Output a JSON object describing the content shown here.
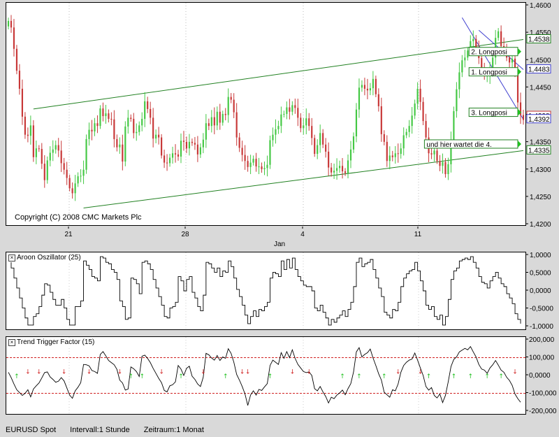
{
  "colors": {
    "up": "#44c844",
    "down": "#c83838",
    "channel": "#208020",
    "down_channel": "#4040d0",
    "ttf_level": "#d02020",
    "signal_up": "#20c020",
    "signal_down": "#d02020"
  },
  "copyright": "Copyright (C) 2008 CMC Markets Plc",
  "status": {
    "symbol": "EURUSD Spot",
    "interval": "Intervall:1 Stunde",
    "period": "Zeitraum:1 Monat"
  },
  "chart_data": [
    {
      "type": "candlestick",
      "id": "price",
      "x_tick_labels": [
        "21",
        "28",
        "4",
        "11"
      ],
      "x_sub_label": "Jan",
      "y_ticks": [
        "1,4600",
        "1,4550",
        "1,4500",
        "1,4450",
        "1,4400",
        "1,4350",
        "1,4300",
        "1,4250",
        "1,4200"
      ],
      "ylim": [
        1.42,
        1.46
      ],
      "price_tags": [
        {
          "label": "1,4538",
          "value": 1.4538,
          "kind": "up"
        },
        {
          "label": "1,4483",
          "value": 1.4483,
          "kind": "blue"
        },
        {
          "label": "1,4398",
          "value": 1.4398,
          "kind": "down"
        },
        {
          "label": "1,4392",
          "value": 1.4392,
          "kind": "blue"
        },
        {
          "label": "1,4335",
          "value": 1.4335,
          "kind": "up"
        }
      ],
      "annotations": [
        {
          "text": "2. Longposi",
          "value": 1.4516
        },
        {
          "text": "1. Longposi",
          "value": 1.4479
        },
        {
          "text": "3. Longposi",
          "value": 1.4405
        },
        {
          "text": "und hier wartet die 4.",
          "value": 1.4347
        }
      ],
      "closes": [
        1.4572,
        1.456,
        1.4521,
        1.4481,
        1.4448,
        1.4397,
        1.4364,
        1.4362,
        1.4381,
        1.4323,
        1.4339,
        1.4338,
        1.4311,
        1.4281,
        1.4317,
        1.4331,
        1.4337,
        1.4345,
        1.4335,
        1.4312,
        1.43,
        1.4285,
        1.4266,
        1.4257,
        1.4275,
        1.4288,
        1.4289,
        1.43,
        1.4356,
        1.4373,
        1.437,
        1.4385,
        1.438,
        1.4412,
        1.4398,
        1.4403,
        1.4393,
        1.4392,
        1.4356,
        1.4341,
        1.4346,
        1.4315,
        1.4379,
        1.4395,
        1.4393,
        1.4367,
        1.4369,
        1.4381,
        1.4393,
        1.4425,
        1.4411,
        1.4395,
        1.4357,
        1.4364,
        1.4359,
        1.4326,
        1.4313,
        1.4312,
        1.4322,
        1.433,
        1.4328,
        1.4324,
        1.4353,
        1.4351,
        1.4339,
        1.4351,
        1.4349,
        1.4346,
        1.4328,
        1.4341,
        1.4355,
        1.4385,
        1.438,
        1.4396,
        1.4381,
        1.4406,
        1.4386,
        1.4402,
        1.44,
        1.4433,
        1.4428,
        1.4405,
        1.4359,
        1.434,
        1.4327,
        1.4316,
        1.4305,
        1.4313,
        1.432,
        1.4306,
        1.4306,
        1.4301,
        1.4303,
        1.4309,
        1.4354,
        1.4364,
        1.4374,
        1.438,
        1.4401,
        1.4402,
        1.4414,
        1.4406,
        1.4418,
        1.4413,
        1.4395,
        1.4376,
        1.4381,
        1.4394,
        1.438,
        1.4358,
        1.4329,
        1.4345,
        1.4367,
        1.4346,
        1.4333,
        1.4304,
        1.4295,
        1.4298,
        1.4303,
        1.4307,
        1.4297,
        1.4294,
        1.4317,
        1.4337,
        1.4361,
        1.441,
        1.445,
        1.4455,
        1.4448,
        1.4445,
        1.4449,
        1.4466,
        1.4438,
        1.4416,
        1.4365,
        1.4351,
        1.4316,
        1.4326,
        1.4323,
        1.433,
        1.4329,
        1.4339,
        1.4363,
        1.4369,
        1.438,
        1.4399,
        1.4421,
        1.4448,
        1.4424,
        1.4389,
        1.4359,
        1.433,
        1.4328,
        1.4335,
        1.4316,
        1.4307,
        1.4314,
        1.4292,
        1.431,
        1.4353,
        1.4407,
        1.4447,
        1.4478,
        1.45,
        1.4505,
        1.4518,
        1.4535,
        1.4539,
        1.4524,
        1.4504,
        1.4487,
        1.4472,
        1.4473,
        1.4479,
        1.4505,
        1.4541,
        1.4553,
        1.4526,
        1.4523,
        1.4505,
        1.4496,
        1.4503,
        1.4477,
        1.4423,
        1.44,
        1.4391
      ]
    },
    {
      "type": "line",
      "id": "aroon",
      "title": "Aroon Oszillator (25)",
      "y_ticks": [
        "1,0000",
        "0,5000",
        "0,0000",
        "-0,5000",
        "-1,0000"
      ],
      "ylim": [
        -1.0,
        1.0
      ],
      "values": [
        0.92,
        0.64,
        0.36,
        0.08,
        -0.2,
        -0.48,
        -0.76,
        -0.96,
        -0.96,
        -0.72,
        -0.64,
        -0.44,
        -0.12,
        0.2,
        0.16,
        -0.04,
        -0.24,
        -0.4,
        -0.4,
        -0.24,
        -0.48,
        -0.8,
        -0.96,
        -0.96,
        -0.44,
        -0.44,
        -0.28,
        0.84,
        0.72,
        0.6,
        0.4,
        0.36,
        0.28,
        0.96,
        0.92,
        0.8,
        0.76,
        0.6,
        0.52,
        0.32,
        -0.28,
        -0.44,
        -0.8,
        -0.76,
        0.36,
        0.32,
        0.2,
        -0.08,
        0.8,
        0.84,
        0.76,
        0.6,
        0.32,
        0.08,
        -0.16,
        -0.4,
        -0.72,
        -0.76,
        -0.48,
        -0.44,
        -0.32,
        0.4,
        0.28,
        0.0,
        0.32,
        0.4,
        -0.04,
        -0.2,
        -0.44,
        -0.56,
        -0.12,
        0.8,
        0.76,
        0.64,
        0.52,
        0.64,
        0.4,
        0.56,
        0.52,
        0.84,
        0.68,
        0.36,
        0.04,
        -0.16,
        -0.4,
        -0.68,
        -0.92,
        -0.72,
        -0.56,
        -0.72,
        -0.52,
        -0.56,
        -0.44,
        -0.32,
        0.36,
        0.52,
        0.48,
        0.4,
        0.84,
        0.6,
        0.88,
        0.64,
        0.92,
        0.6,
        0.4,
        0.28,
        0.16,
        0.12,
        0.12,
        0.0,
        -0.48,
        -0.56,
        -0.4,
        -0.6,
        -0.76,
        -0.96,
        -0.8,
        -0.88,
        -0.76,
        -0.68,
        -0.56,
        -0.72,
        -0.52,
        -0.32,
        0.12,
        0.8,
        0.92,
        0.68,
        0.76,
        0.8,
        0.88,
        0.6,
        0.36,
        0.08,
        -0.16,
        -0.6,
        -0.68,
        -0.76,
        -0.52,
        -0.56,
        -0.32,
        0.12,
        0.36,
        0.48,
        0.56,
        0.6,
        0.8,
        0.56,
        0.28,
        0.0,
        -0.4,
        -0.52,
        -0.44,
        -0.72,
        -0.8,
        -0.68,
        -0.96,
        -0.72,
        -0.24,
        0.32,
        0.56,
        0.64,
        0.84,
        0.88,
        0.92,
        0.88,
        0.96,
        0.8,
        0.64,
        0.4,
        0.24,
        0.2,
        0.08,
        0.28,
        0.4,
        0.52,
        0.36,
        0.2,
        0.12,
        -0.08,
        -0.2,
        -0.36,
        -0.64,
        -0.8,
        -0.92
      ]
    },
    {
      "type": "line",
      "id": "ttf",
      "title": "Trend Trigger Factor (15)",
      "y_ticks": [
        "200,000",
        "100,000",
        "0,0000",
        "-100,000",
        "-200,000"
      ],
      "ylim": [
        -200,
        200
      ],
      "levels": [
        100,
        -100
      ],
      "values": [
        18,
        -12,
        -48,
        -80,
        -96,
        -112,
        -100,
        -80,
        -120,
        -76,
        -58,
        -42,
        -14,
        16,
        20,
        -8,
        -22,
        -38,
        -32,
        -12,
        -30,
        -70,
        -110,
        -128,
        -86,
        -66,
        -40,
        62,
        60,
        54,
        28,
        22,
        12,
        118,
        134,
        110,
        84,
        72,
        60,
        34,
        -26,
        -42,
        -82,
        -76,
        48,
        38,
        22,
        -6,
        108,
        114,
        96,
        72,
        40,
        12,
        -16,
        -40,
        -84,
        -92,
        -58,
        -52,
        -36,
        56,
        36,
        0,
        40,
        52,
        -4,
        -22,
        -48,
        -62,
        -10,
        124,
        116,
        98,
        86,
        112,
        84,
        104,
        96,
        150,
        124,
        74,
        6,
        -26,
        -62,
        -104,
        -168,
        -110,
        -86,
        -110,
        -78,
        -84,
        -64,
        -46,
        56,
        86,
        74,
        62,
        128,
        96,
        134,
        100,
        144,
        96,
        62,
        42,
        22,
        16,
        20,
        0,
        -74,
        -86,
        -62,
        -92,
        -118,
        -154,
        -122,
        -130,
        -110,
        -98,
        -82,
        -108,
        -74,
        -46,
        20,
        132,
        156,
        104,
        118,
        128,
        148,
        98,
        56,
        10,
        -26,
        -94,
        -108,
        -122,
        -80,
        -86,
        -48,
        18,
        56,
        74,
        86,
        92,
        126,
        86,
        42,
        0,
        -62,
        -82,
        -68,
        -112,
        -126,
        -104,
        -152,
        -112,
        -36,
        50,
        90,
        104,
        132,
        142,
        152,
        144,
        162,
        132,
        104,
        62,
        36,
        30,
        12,
        42,
        60,
        84,
        58,
        30,
        18,
        -10,
        -28,
        -56,
        -104,
        -130,
        -150
      ],
      "signals_up_x": [
        3,
        44,
        48,
        62,
        78,
        94,
        120,
        126,
        135,
        151,
        160,
        166,
        172,
        177
      ],
      "signals_down_x": [
        7,
        11,
        20,
        29,
        40,
        55,
        70,
        84,
        86,
        102,
        108,
        140,
        148,
        182,
        188,
        196
      ]
    }
  ]
}
